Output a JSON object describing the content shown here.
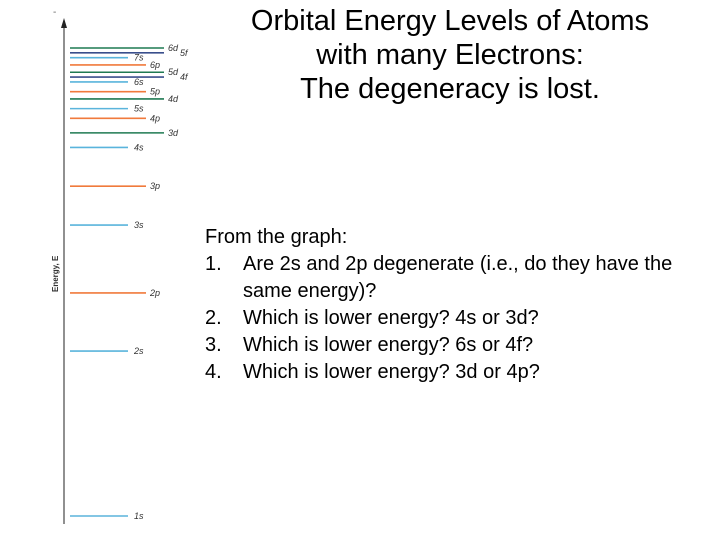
{
  "title_lines": [
    "Orbital Energy Levels of Atoms",
    "with many Electrons:",
    "The degeneracy is lost."
  ],
  "intro": "From the graph:",
  "questions": [
    {
      "num": "1.",
      "text": "Are 2s and 2p degenerate (i.e., do they have the same energy)?"
    },
    {
      "num": "2.",
      "text": "Which is lower energy? 4s or 3d?"
    },
    {
      "num": "3.",
      "text": "Which is lower energy? 6s or 4f?"
    },
    {
      "num": "4.",
      "text": "Which is lower energy? 3d or 4p?"
    }
  ],
  "axis_label": "Energy, E",
  "colors": {
    "s": "#5ab4dc",
    "p": "#f07a3c",
    "d": "#1f7a52",
    "f": "#3a4f8c"
  },
  "levels": [
    {
      "label": "1s",
      "type": "s",
      "energy": 0
    },
    {
      "label": "2s",
      "type": "s",
      "energy": 34
    },
    {
      "label": "2p",
      "type": "p",
      "energy": 46
    },
    {
      "label": "3s",
      "type": "s",
      "energy": 60
    },
    {
      "label": "3p",
      "type": "p",
      "energy": 68
    },
    {
      "label": "4s",
      "type": "s",
      "energy": 76
    },
    {
      "label": "3d",
      "type": "d",
      "energy": 79
    },
    {
      "label": "4p",
      "type": "p",
      "energy": 82
    },
    {
      "label": "5s",
      "type": "s",
      "energy": 84
    },
    {
      "label": "4d",
      "type": "d",
      "energy": 86
    },
    {
      "label": "5p",
      "type": "p",
      "energy": 87.5
    },
    {
      "label": "6s",
      "type": "s",
      "energy": 89.5
    },
    {
      "label": "4f",
      "type": "f",
      "energy": 90.5
    },
    {
      "label": "5d",
      "type": "d",
      "energy": 91.5
    },
    {
      "label": "6p",
      "type": "p",
      "energy": 93
    },
    {
      "label": "7s",
      "type": "s",
      "energy": 94.5
    },
    {
      "label": "5f",
      "type": "f",
      "energy": 95.5
    },
    {
      "label": "6d",
      "type": "d",
      "energy": 96.5
    }
  ]
}
